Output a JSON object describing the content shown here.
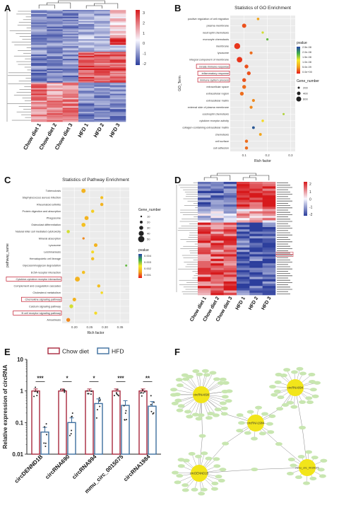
{
  "panels": {
    "a": {
      "label": "A"
    },
    "b": {
      "label": "B"
    },
    "c": {
      "label": "C"
    },
    "d": {
      "label": "D"
    },
    "e": {
      "label": "E"
    },
    "f": {
      "label": "F"
    }
  },
  "heatmap_a": {
    "samples": [
      "Chow diet 1",
      "Chow diet 2",
      "Chow diet 3",
      "HFD 1",
      "HFD 2",
      "HFD 3"
    ],
    "scale_ticks": [
      "3",
      "2",
      "1",
      "0",
      "-1",
      "-2"
    ],
    "colors": {
      "high": "#d7191c",
      "mid": "#ffffff",
      "low": "#2c3e9c"
    }
  },
  "heatmap_d": {
    "samples": [
      "Chow diet 1",
      "Chow diet 2",
      "Chow diet 3",
      "HFD 1",
      "HFD 2",
      "HFD 3"
    ],
    "scale_ticks": [
      "2",
      "1",
      "0",
      "-1",
      "-2"
    ]
  },
  "chart_data": [
    {
      "type": "scatter",
      "title": "Statistics of GO Enrichment",
      "xlabel": "Rich factor",
      "ylabel": "GO_Term",
      "xticks": [
        "0.1",
        "0.2",
        "0.3"
      ],
      "terms": [
        "positive regulation of cell migration",
        "plasma membrane",
        "neutrophil chemotaxis",
        "monocyte chemotaxis",
        "membrane",
        "lysosome",
        "integral component of membrane",
        "innate immune response",
        "inflammatory response",
        "immune system process",
        "extracellular space",
        "extracellular region",
        "extracellular matrix",
        "external side of plasma membrane",
        "eosinophil chemotaxis",
        "cytokine receptor activity",
        "collagen-containing extracellular matrix",
        "chemotaxis",
        "cell surface",
        "cell adhesion"
      ],
      "highlighted": [
        "innate immune response",
        "inflammatory response",
        "immune system process"
      ],
      "rich_factor": [
        0.16,
        0.1,
        0.18,
        0.2,
        0.07,
        0.13,
        0.08,
        0.11,
        0.12,
        0.1,
        0.1,
        0.09,
        0.14,
        0.13,
        0.27,
        0.18,
        0.14,
        0.17,
        0.11,
        0.11
      ],
      "pvalue_level": [
        0.25,
        0.1,
        0.55,
        0.7,
        0.05,
        0.15,
        0.05,
        0.1,
        0.1,
        0.1,
        0.15,
        0.15,
        0.2,
        0.2,
        0.6,
        0.45,
        0.95,
        0.25,
        0.15,
        0.15
      ],
      "gene_number_level": [
        0.2,
        0.6,
        0.15,
        0.15,
        1.0,
        0.3,
        0.9,
        0.5,
        0.5,
        0.5,
        0.5,
        0.5,
        0.3,
        0.3,
        0.1,
        0.2,
        0.25,
        0.25,
        0.35,
        0.35
      ],
      "legend": {
        "color_title": "pvalue",
        "color_ticks": [
          "2.5e-08",
          "2.0e-08",
          "1.5e-08",
          "1.0e-08",
          "5.0e-09",
          "0.0e+00"
        ],
        "size_title": "Gene_number",
        "size_ticks": [
          "200",
          "400",
          "600"
        ]
      }
    },
    {
      "type": "scatter",
      "title": "Statistics of Pathway Enrichment",
      "xlabel": "Rich factor",
      "ylabel": "pathway_name",
      "xticks": [
        "0.20",
        "0.25",
        "0.30",
        "0.35"
      ],
      "terms": [
        "Tuberculosis",
        "Staphylococcus aureus infection",
        "Rheumatoid arthritis",
        "Protein digestion and absorption",
        "Phagosome",
        "Osteoclast differentiation",
        "Natural killer cell mediated cytotoxicity",
        "Mineral absorption",
        "Lysosome",
        "Leishmaniasis",
        "Hematopoietic cell lineage",
        "Glycosaminoglycan degradation",
        "ECM-receptor interaction",
        "Cytokine-cytokine receptor interaction",
        "Complement and coagulation cascades",
        "Cholesterol metabolism",
        "Chemokine signaling pathway",
        "Calcium signaling pathway",
        "B cell receptor signaling pathway",
        "Amoebiasis"
      ],
      "highlighted": [
        "Cytokine-cytokine receptor interaction",
        "Chemokine signaling pathway",
        "B cell receptor signaling pathway"
      ],
      "rich_factor": [
        0.23,
        0.29,
        0.29,
        0.26,
        0.24,
        0.23,
        0.18,
        0.23,
        0.27,
        0.26,
        0.26,
        0.37,
        0.23,
        0.21,
        0.28,
        0.29,
        0.2,
        0.19,
        0.27,
        0.18
      ],
      "pvalue_level": [
        0.3,
        0.35,
        0.3,
        0.4,
        0.3,
        0.35,
        0.55,
        0.2,
        0.3,
        0.45,
        0.35,
        0.7,
        0.35,
        0.3,
        0.35,
        0.45,
        0.3,
        0.55,
        0.45,
        0.2
      ],
      "gene_number_level": [
        0.6,
        0.3,
        0.35,
        0.35,
        0.55,
        0.55,
        0.35,
        0.15,
        0.45,
        0.3,
        0.35,
        0.1,
        0.35,
        0.75,
        0.35,
        0.2,
        0.45,
        0.5,
        0.3,
        0.5
      ],
      "legend": {
        "size_title": "Gene_number",
        "size_ticks": [
          "10",
          "20",
          "30",
          "40",
          "50"
        ],
        "color_title": "pvalue",
        "color_ticks": [
          "0.004",
          "0.003",
          "0.002",
          "0.001"
        ]
      }
    },
    {
      "type": "bar",
      "ylabel": "Relative expression of circRNA",
      "yscale": "log",
      "ylim": [
        0.01,
        10
      ],
      "yticks": [
        "10",
        "1",
        "0.1",
        "0.01"
      ],
      "categories": [
        "circDENND1B",
        "circRNA690",
        "circRNA994",
        "mmu_circ_0015075",
        "circRNA1984"
      ],
      "significance": [
        "***",
        "*",
        "*",
        "***",
        "**"
      ],
      "series": [
        {
          "name": "Chow diet",
          "color": "#a8283d",
          "values": [
            1.0,
            1.0,
            1.0,
            1.0,
            1.0
          ]
        },
        {
          "name": "HFD",
          "color": "#3d6e9e",
          "values": [
            0.05,
            0.1,
            0.4,
            0.35,
            0.33
          ]
        }
      ]
    }
  ],
  "network_f": {
    "hubs": [
      "circRNA690",
      "circRNA994",
      "circRNA1984",
      "circDENND1B",
      "mmu_circ_0015075"
    ]
  }
}
